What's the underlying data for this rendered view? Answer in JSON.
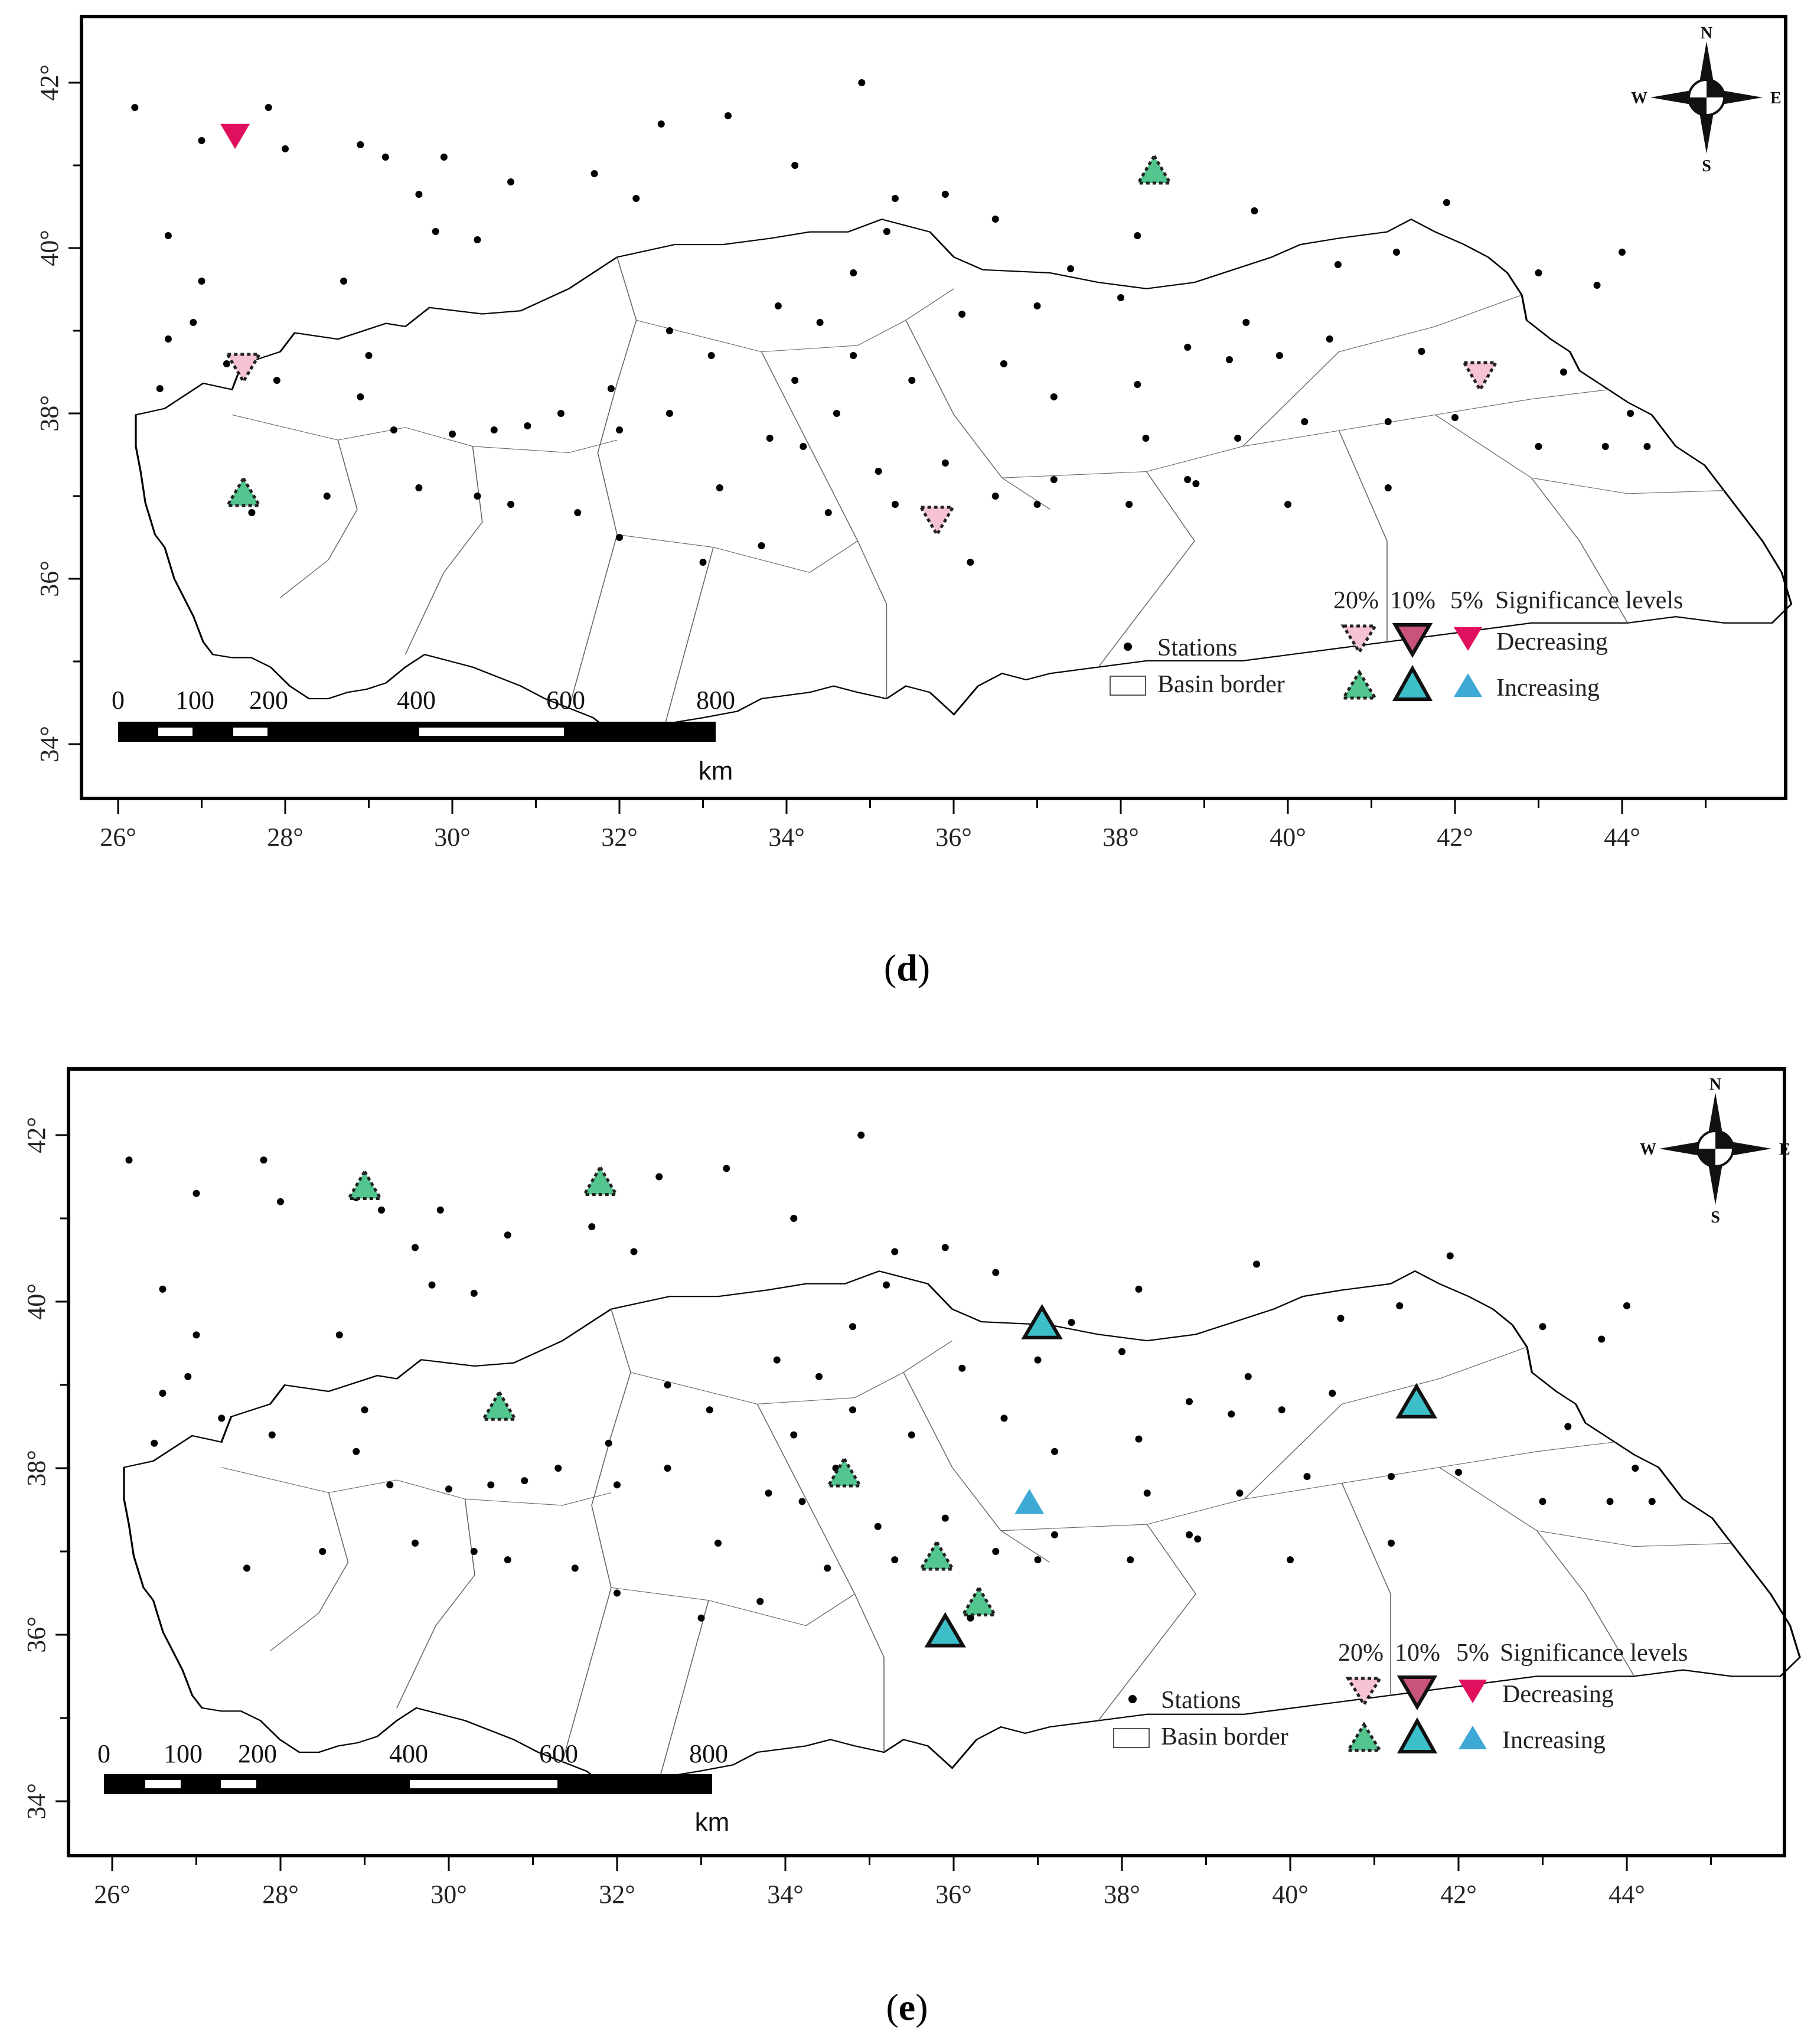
{
  "panels": [
    {
      "caption_open": "(",
      "caption_letter": "d",
      "caption_close": ")",
      "x_ticks": [
        "26°",
        "28°",
        "30°",
        "32°",
        "34°",
        "36°",
        "38°",
        "40°",
        "42°",
        "44°"
      ],
      "y_ticks": [
        "42°",
        "40°",
        "38°",
        "36°",
        "34°"
      ],
      "compass": {
        "n": "N",
        "s": "S",
        "e": "E",
        "w": "W"
      },
      "scale_bar": {
        "labels": [
          "0",
          "100",
          "200",
          "400",
          "600",
          "800"
        ],
        "unit": "km"
      },
      "legend": {
        "levels": [
          "20%",
          "10%",
          "5%"
        ],
        "levels_title": "Significance levels",
        "decreasing": "Decreasing",
        "increasing": "Increasing",
        "stations": "Stations",
        "basin_border": "Basin border"
      },
      "trend_markers": [
        {
          "lon": 27.4,
          "lat": 41.35,
          "direction": "decreasing",
          "level": "5%"
        },
        {
          "lon": 27.5,
          "lat": 38.55,
          "direction": "decreasing",
          "level": "20%"
        },
        {
          "lon": 27.5,
          "lat": 37.05,
          "direction": "increasing",
          "level": "20%"
        },
        {
          "lon": 38.4,
          "lat": 40.95,
          "direction": "increasing",
          "level": "20%"
        },
        {
          "lon": 35.8,
          "lat": 36.7,
          "direction": "decreasing",
          "level": "20%"
        },
        {
          "lon": 42.3,
          "lat": 38.45,
          "direction": "decreasing",
          "level": "20%"
        }
      ]
    },
    {
      "caption_open": "(",
      "caption_letter": "e",
      "caption_close": ")",
      "x_ticks": [
        "26°",
        "28°",
        "30°",
        "32°",
        "34°",
        "36°",
        "38°",
        "40°",
        "42°",
        "44°"
      ],
      "y_ticks": [
        "42°",
        "40°",
        "38°",
        "36°",
        "34°"
      ],
      "compass": {
        "n": "N",
        "s": "S",
        "e": "E",
        "w": "W"
      },
      "scale_bar": {
        "labels": [
          "0",
          "100",
          "200",
          "400",
          "600",
          "800"
        ],
        "unit": "km"
      },
      "legend": {
        "levels": [
          "20%",
          "10%",
          "5%"
        ],
        "levels_title": "Significance levels",
        "decreasing": "Decreasing",
        "increasing": "Increasing",
        "stations": "Stations",
        "basin_border": "Basin border"
      },
      "trend_markers": [
        {
          "lon": 29.0,
          "lat": 41.4,
          "direction": "increasing",
          "level": "20%"
        },
        {
          "lon": 31.8,
          "lat": 41.45,
          "direction": "increasing",
          "level": "20%"
        },
        {
          "lon": 30.6,
          "lat": 38.75,
          "direction": "increasing",
          "level": "20%"
        },
        {
          "lon": 34.7,
          "lat": 37.95,
          "direction": "increasing",
          "level": "20%"
        },
        {
          "lon": 35.8,
          "lat": 36.95,
          "direction": "increasing",
          "level": "20%"
        },
        {
          "lon": 36.3,
          "lat": 36.4,
          "direction": "increasing",
          "level": "20%"
        },
        {
          "lon": 35.9,
          "lat": 36.05,
          "direction": "increasing",
          "level": "10%"
        },
        {
          "lon": 37.05,
          "lat": 39.75,
          "direction": "increasing",
          "level": "10%"
        },
        {
          "lon": 41.5,
          "lat": 38.8,
          "direction": "increasing",
          "level": "10%"
        },
        {
          "lon": 36.9,
          "lat": 37.6,
          "direction": "increasing",
          "level": "5%"
        }
      ]
    }
  ],
  "stations": [
    [
      26.2,
      41.7
    ],
    [
      27.0,
      41.3
    ],
    [
      27.8,
      41.7
    ],
    [
      28.0,
      41.2
    ],
    [
      28.9,
      41.25
    ],
    [
      29.2,
      41.1
    ],
    [
      29.9,
      41.1
    ],
    [
      29.6,
      40.65
    ],
    [
      26.6,
      40.15
    ],
    [
      27.0,
      39.6
    ],
    [
      28.7,
      39.6
    ],
    [
      29.8,
      40.2
    ],
    [
      30.3,
      40.1
    ],
    [
      30.7,
      40.8
    ],
    [
      31.7,
      40.9
    ],
    [
      32.2,
      40.6
    ],
    [
      32.5,
      41.5
    ],
    [
      33.3,
      41.6
    ],
    [
      34.9,
      42.0
    ],
    [
      34.1,
      41.0
    ],
    [
      35.3,
      40.6
    ],
    [
      35.9,
      40.65
    ],
    [
      36.5,
      40.35
    ],
    [
      37.4,
      39.75
    ],
    [
      38.2,
      40.15
    ],
    [
      39.6,
      40.45
    ],
    [
      40.6,
      39.8
    ],
    [
      41.3,
      39.95
    ],
    [
      41.9,
      40.55
    ],
    [
      43.0,
      39.7
    ],
    [
      43.7,
      39.55
    ],
    [
      44.0,
      39.95
    ],
    [
      26.9,
      39.1
    ],
    [
      27.3,
      38.6
    ],
    [
      27.9,
      38.4
    ],
    [
      28.9,
      38.2
    ],
    [
      29.3,
      37.8
    ],
    [
      30.0,
      37.75
    ],
    [
      30.5,
      37.8
    ],
    [
      30.9,
      37.85
    ],
    [
      31.3,
      38.0
    ],
    [
      31.9,
      38.3
    ],
    [
      32.0,
      37.8
    ],
    [
      32.6,
      38.0
    ],
    [
      33.2,
      37.1
    ],
    [
      33.8,
      37.7
    ],
    [
      34.2,
      37.6
    ],
    [
      34.6,
      38.0
    ],
    [
      35.1,
      37.3
    ],
    [
      35.9,
      37.4
    ],
    [
      36.5,
      37.0
    ],
    [
      37.2,
      37.2
    ],
    [
      38.3,
      37.7
    ],
    [
      38.9,
      37.15
    ],
    [
      39.4,
      37.7
    ],
    [
      40.2,
      37.9
    ],
    [
      41.2,
      37.9
    ],
    [
      42.0,
      37.95
    ],
    [
      43.0,
      37.6
    ],
    [
      43.8,
      37.6
    ],
    [
      44.3,
      37.6
    ],
    [
      44.1,
      38.0
    ],
    [
      43.3,
      38.5
    ],
    [
      41.6,
      38.75
    ],
    [
      40.5,
      38.9
    ],
    [
      39.9,
      38.7
    ],
    [
      39.3,
      38.65
    ],
    [
      38.8,
      38.8
    ],
    [
      38.2,
      38.35
    ],
    [
      37.2,
      38.2
    ],
    [
      36.6,
      38.6
    ],
    [
      35.5,
      38.4
    ],
    [
      34.8,
      38.7
    ],
    [
      34.1,
      38.4
    ],
    [
      33.1,
      38.7
    ],
    [
      32.6,
      39.0
    ],
    [
      33.9,
      39.3
    ],
    [
      34.4,
      39.1
    ],
    [
      34.8,
      39.7
    ],
    [
      35.2,
      40.2
    ],
    [
      36.1,
      39.2
    ],
    [
      37.0,
      39.3
    ],
    [
      38.0,
      39.4
    ],
    [
      39.5,
      39.1
    ],
    [
      27.6,
      36.8
    ],
    [
      28.5,
      37.0
    ],
    [
      29.6,
      37.1
    ],
    [
      30.7,
      36.9
    ],
    [
      31.5,
      36.8
    ],
    [
      32.0,
      36.5
    ],
    [
      33.0,
      36.2
    ],
    [
      33.7,
      36.4
    ],
    [
      34.5,
      36.8
    ],
    [
      35.3,
      36.9
    ],
    [
      36.2,
      36.2
    ],
    [
      37.0,
      36.9
    ],
    [
      38.1,
      36.9
    ],
    [
      38.8,
      37.2
    ],
    [
      40.0,
      36.9
    ],
    [
      41.2,
      37.1
    ],
    [
      26.5,
      38.3
    ],
    [
      26.6,
      38.9
    ],
    [
      30.3,
      37.0
    ],
    [
      29.0,
      38.7
    ]
  ]
}
